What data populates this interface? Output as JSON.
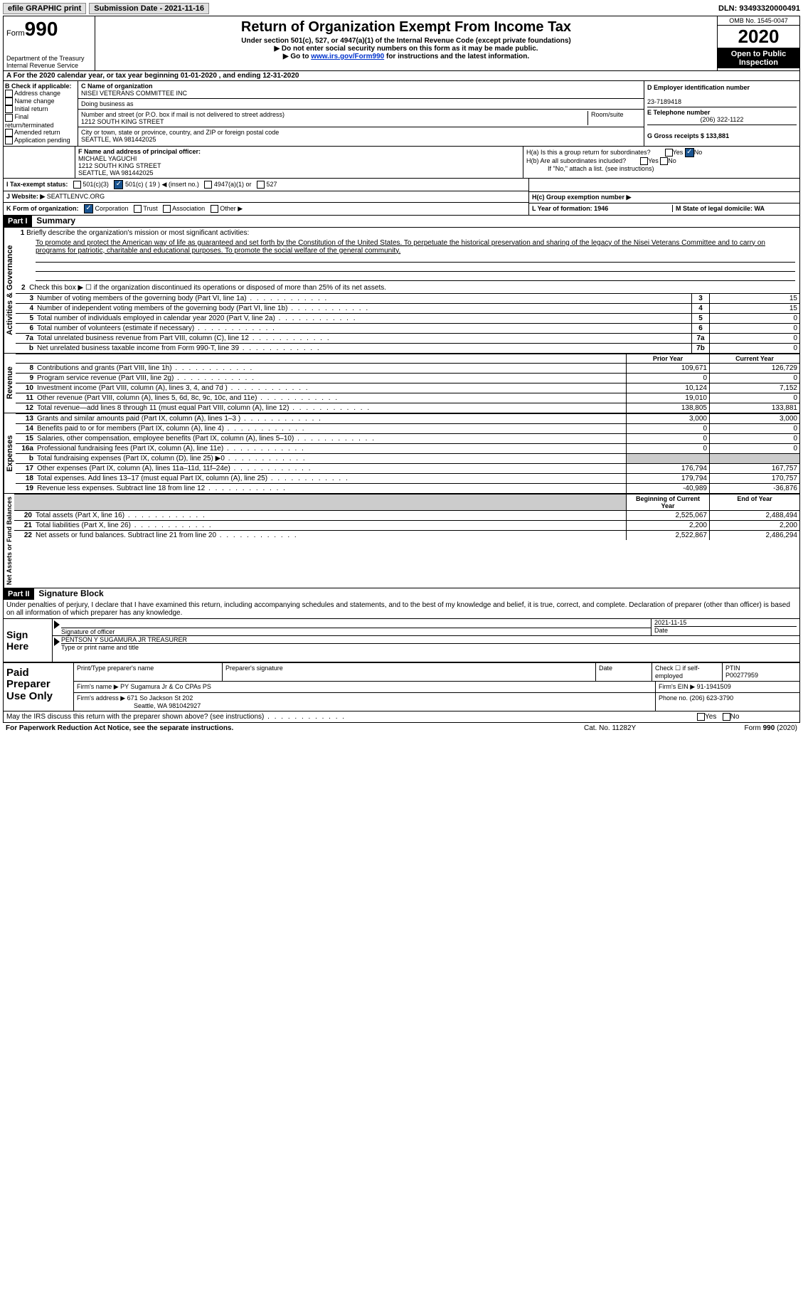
{
  "topbar": {
    "efile": "efile GRAPHIC print",
    "submission_label": "Submission Date - 2021-11-16",
    "dln_label": "DLN: 93493320000491"
  },
  "header": {
    "form_word": "Form",
    "form_num": "990",
    "dept": "Department of the Treasury",
    "irs": "Internal Revenue Service",
    "title": "Return of Organization Exempt From Income Tax",
    "subtitle": "Under section 501(c), 527, or 4947(a)(1) of the Internal Revenue Code (except private foundations)",
    "warn1": "▶ Do not enter social security numbers on this form as it may be made public.",
    "warn2_pre": "▶ Go to ",
    "warn2_link": "www.irs.gov/Form990",
    "warn2_post": " for instructions and the latest information.",
    "omb": "OMB No. 1545-0047",
    "year": "2020",
    "open": "Open to Public Inspection"
  },
  "row_a": "A For the 2020 calendar year, or tax year beginning 01-01-2020    , and ending 12-31-2020",
  "box_b": {
    "title": "B Check if applicable:",
    "items": [
      "Address change",
      "Name change",
      "Initial return",
      "Final return/terminated",
      "Amended return",
      "Application pending"
    ]
  },
  "box_c": {
    "label1": "C Name of organization",
    "org": "NISEI VETERANS COMMITTEE INC",
    "dba_label": "Doing business as",
    "addr_label": "Number and street (or P.O. box if mail is not delivered to street address)",
    "room_label": "Room/suite",
    "addr": "1212 SOUTH KING STREET",
    "city_label": "City or town, state or province, country, and ZIP or foreign postal code",
    "city": "SEATTLE, WA  981442025"
  },
  "box_d": {
    "d_label": "D Employer identification number",
    "ein": "23-7189418",
    "e_label": "E Telephone number",
    "phone": "(206) 322-1122",
    "g_label": "G Gross receipts $ 133,881"
  },
  "box_f": {
    "label": "F Name and address of principal officer:",
    "name": "MICHAEL YAGUCHI",
    "addr1": "1212 SOUTH KING STREET",
    "addr2": "SEATTLE, WA  981442025"
  },
  "box_h": {
    "ha": "H(a)  Is this a group return for subordinates?",
    "hb": "H(b)  Are all subordinates included?",
    "hb_note": "If \"No,\" attach a list. (see instructions)",
    "hc": "H(c)  Group exemption number ▶"
  },
  "row_i": "I   Tax-exempt status:",
  "row_i_opts": {
    "a": "501(c)(3)",
    "b": "501(c) ( 19 ) ◀ (insert no.)",
    "c": "4947(a)(1) or",
    "d": "527"
  },
  "row_j": {
    "label": "J   Website: ▶",
    "val": "SEATTLENVC.ORG"
  },
  "row_k": "K Form of organization:",
  "row_k_opts": [
    "Corporation",
    "Trust",
    "Association",
    "Other ▶"
  ],
  "row_l": "L Year of formation: 1946",
  "row_m": "M State of legal domicile: WA",
  "part1": "Part I",
  "part1_title": "Summary",
  "mission_label": "1  Briefly describe the organization's mission or most significant activities:",
  "mission": "To promote and protect the American way of life as guaranteed and set forth by the Constitution of the United States. To perpetuate the historical preservation and sharing of the legacy of the Nisei Veterans Committee and to carry on programs for patriotic, charitable and educational purposes. To promote the social welfare of the general community.",
  "line2": "Check this box ▶ ☐ if the organization discontinued its operations or disposed of more than 25% of its net assets.",
  "activities_lines": [
    {
      "n": "3",
      "label": "Number of voting members of the governing body (Part VI, line 1a)",
      "box": "3",
      "val": "15"
    },
    {
      "n": "4",
      "label": "Number of independent voting members of the governing body (Part VI, line 1b)",
      "box": "4",
      "val": "15"
    },
    {
      "n": "5",
      "label": "Total number of individuals employed in calendar year 2020 (Part V, line 2a)",
      "box": "5",
      "val": "0"
    },
    {
      "n": "6",
      "label": "Total number of volunteers (estimate if necessary)",
      "box": "6",
      "val": "0"
    },
    {
      "n": "7a",
      "label": "Total unrelated business revenue from Part VIII, column (C), line 12",
      "box": "7a",
      "val": "0"
    },
    {
      "n": "b",
      "label": "Net unrelated business taxable income from Form 990-T, line 39",
      "box": "7b",
      "val": "0"
    }
  ],
  "prior_label": "Prior Year",
  "current_label": "Current Year",
  "revenue_lines": [
    {
      "n": "8",
      "label": "Contributions and grants (Part VIII, line 1h)",
      "p": "109,671",
      "c": "126,729"
    },
    {
      "n": "9",
      "label": "Program service revenue (Part VIII, line 2g)",
      "p": "0",
      "c": "0"
    },
    {
      "n": "10",
      "label": "Investment income (Part VIII, column (A), lines 3, 4, and 7d )",
      "p": "10,124",
      "c": "7,152"
    },
    {
      "n": "11",
      "label": "Other revenue (Part VIII, column (A), lines 5, 6d, 8c, 9c, 10c, and 11e)",
      "p": "19,010",
      "c": "0"
    },
    {
      "n": "12",
      "label": "Total revenue—add lines 8 through 11 (must equal Part VIII, column (A), line 12)",
      "p": "138,805",
      "c": "133,881"
    }
  ],
  "expense_lines": [
    {
      "n": "13",
      "label": "Grants and similar amounts paid (Part IX, column (A), lines 1–3 )",
      "p": "3,000",
      "c": "3,000"
    },
    {
      "n": "14",
      "label": "Benefits paid to or for members (Part IX, column (A), line 4)",
      "p": "0",
      "c": "0"
    },
    {
      "n": "15",
      "label": "Salaries, other compensation, employee benefits (Part IX, column (A), lines 5–10)",
      "p": "0",
      "c": "0"
    },
    {
      "n": "16a",
      "label": "Professional fundraising fees (Part IX, column (A), line 11e)",
      "p": "0",
      "c": "0"
    },
    {
      "n": "b",
      "label": "Total fundraising expenses (Part IX, column (D), line 25) ▶0",
      "p": "",
      "c": ""
    },
    {
      "n": "17",
      "label": "Other expenses (Part IX, column (A), lines 11a–11d, 11f–24e)",
      "p": "176,794",
      "c": "167,757"
    },
    {
      "n": "18",
      "label": "Total expenses. Add lines 13–17 (must equal Part IX, column (A), line 25)",
      "p": "179,794",
      "c": "170,757"
    },
    {
      "n": "19",
      "label": "Revenue less expenses. Subtract line 18 from line 12",
      "p": "-40,989",
      "c": "-36,876"
    }
  ],
  "net_head_a": "Beginning of Current Year",
  "net_head_b": "End of Year",
  "net_lines": [
    {
      "n": "20",
      "label": "Total assets (Part X, line 16)",
      "p": "2,525,067",
      "c": "2,488,494"
    },
    {
      "n": "21",
      "label": "Total liabilities (Part X, line 26)",
      "p": "2,200",
      "c": "2,200"
    },
    {
      "n": "22",
      "label": "Net assets or fund balances. Subtract line 21 from line 20",
      "p": "2,522,867",
      "c": "2,486,294"
    }
  ],
  "part2": "Part II",
  "part2_title": "Signature Block",
  "penalties": "Under penalties of perjury, I declare that I have examined this return, including accompanying schedules and statements, and to the best of my knowledge and belief, it is true, correct, and complete. Declaration of preparer (other than officer) is based on all information of which preparer has any knowledge.",
  "sign": {
    "here": "Sign Here",
    "sig_officer": "Signature of officer",
    "date": "Date",
    "sig_date": "2021-11-15",
    "name_title": "PENTSON Y SUGAMURA JR  TREASURER",
    "type_label": "Type or print name and title"
  },
  "preparer": {
    "title": "Paid Preparer Use Only",
    "h1": "Print/Type preparer's name",
    "h2": "Preparer's signature",
    "h3": "Date",
    "h4": "Check ☐ if self-employed",
    "h5": "PTIN",
    "ptin": "P00277959",
    "firm_name_label": "Firm's name    ▶",
    "firm_name": "PY Sugamura Jr & Co CPAs PS",
    "firm_ein_label": "Firm's EIN ▶",
    "firm_ein": "91-1941509",
    "firm_addr_label": "Firm's address ▶",
    "firm_addr": "671 So Jackson St 202",
    "firm_city": "Seattle, WA  981042927",
    "phone_label": "Phone no.",
    "phone": "(206) 623-3790"
  },
  "may_irs": "May the IRS discuss this return with the preparer shown above? (see instructions)",
  "footer": {
    "left": "For Paperwork Reduction Act Notice, see the separate instructions.",
    "mid": "Cat. No. 11282Y",
    "right": "Form 990 (2020)"
  },
  "vtabs": {
    "ag": "Activities & Governance",
    "rev": "Revenue",
    "exp": "Expenses",
    "net": "Net Assets or Fund Balances"
  }
}
